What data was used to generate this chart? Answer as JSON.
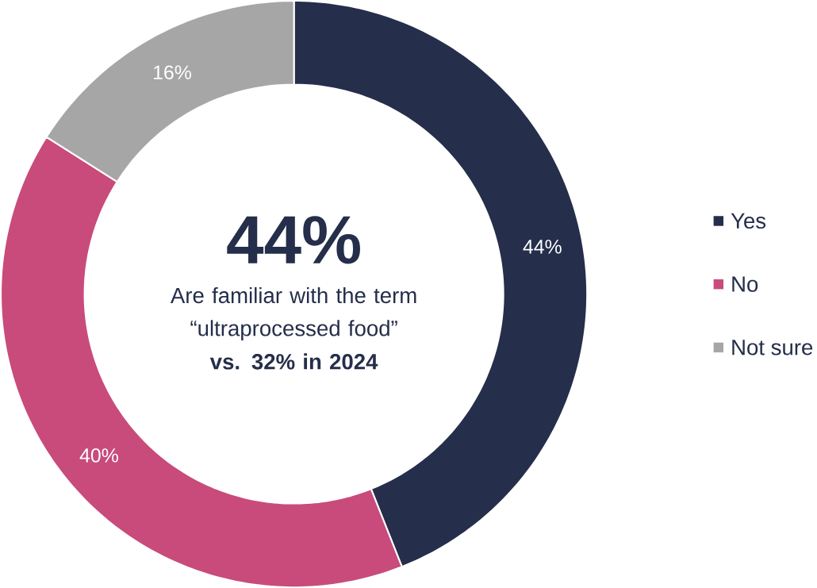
{
  "chart_data": {
    "type": "donut",
    "categories": [
      "Yes",
      "No",
      "Not sure"
    ],
    "values": [
      44,
      40,
      16
    ],
    "colors": [
      "#252e4a",
      "#c84b7b",
      "#a6a6a6"
    ],
    "value_labels": [
      "44%",
      "40%",
      "16%"
    ],
    "annotations": [
      "44%",
      "Are familiar with the term “ultraprocessed food”",
      "vs. 32% in 2024"
    ],
    "legend": "right"
  }
}
